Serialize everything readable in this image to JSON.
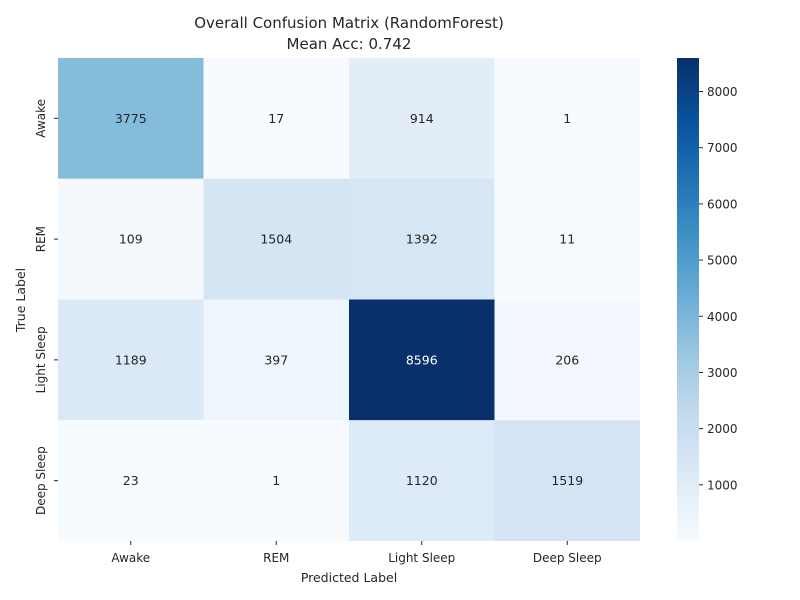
{
  "chart_data": {
    "type": "heatmap",
    "title": "Overall Confusion Matrix (RandomForest)",
    "subtitle": "Mean Acc: 0.742",
    "xlabel": "Predicted Label",
    "ylabel": "True Label",
    "x_categories": [
      "Awake",
      "REM",
      "Light Sleep",
      "Deep Sleep"
    ],
    "y_categories": [
      "Awake",
      "REM",
      "Light Sleep",
      "Deep Sleep"
    ],
    "values": [
      [
        3775,
        17,
        914,
        1
      ],
      [
        109,
        1504,
        1392,
        11
      ],
      [
        1189,
        397,
        8596,
        206
      ],
      [
        23,
        1,
        1120,
        1519
      ]
    ],
    "colormap": "Blues",
    "vmin": 1,
    "vmax": 8596,
    "colorbar_ticks": [
      1000,
      2000,
      3000,
      4000,
      5000,
      6000,
      7000,
      8000
    ]
  }
}
